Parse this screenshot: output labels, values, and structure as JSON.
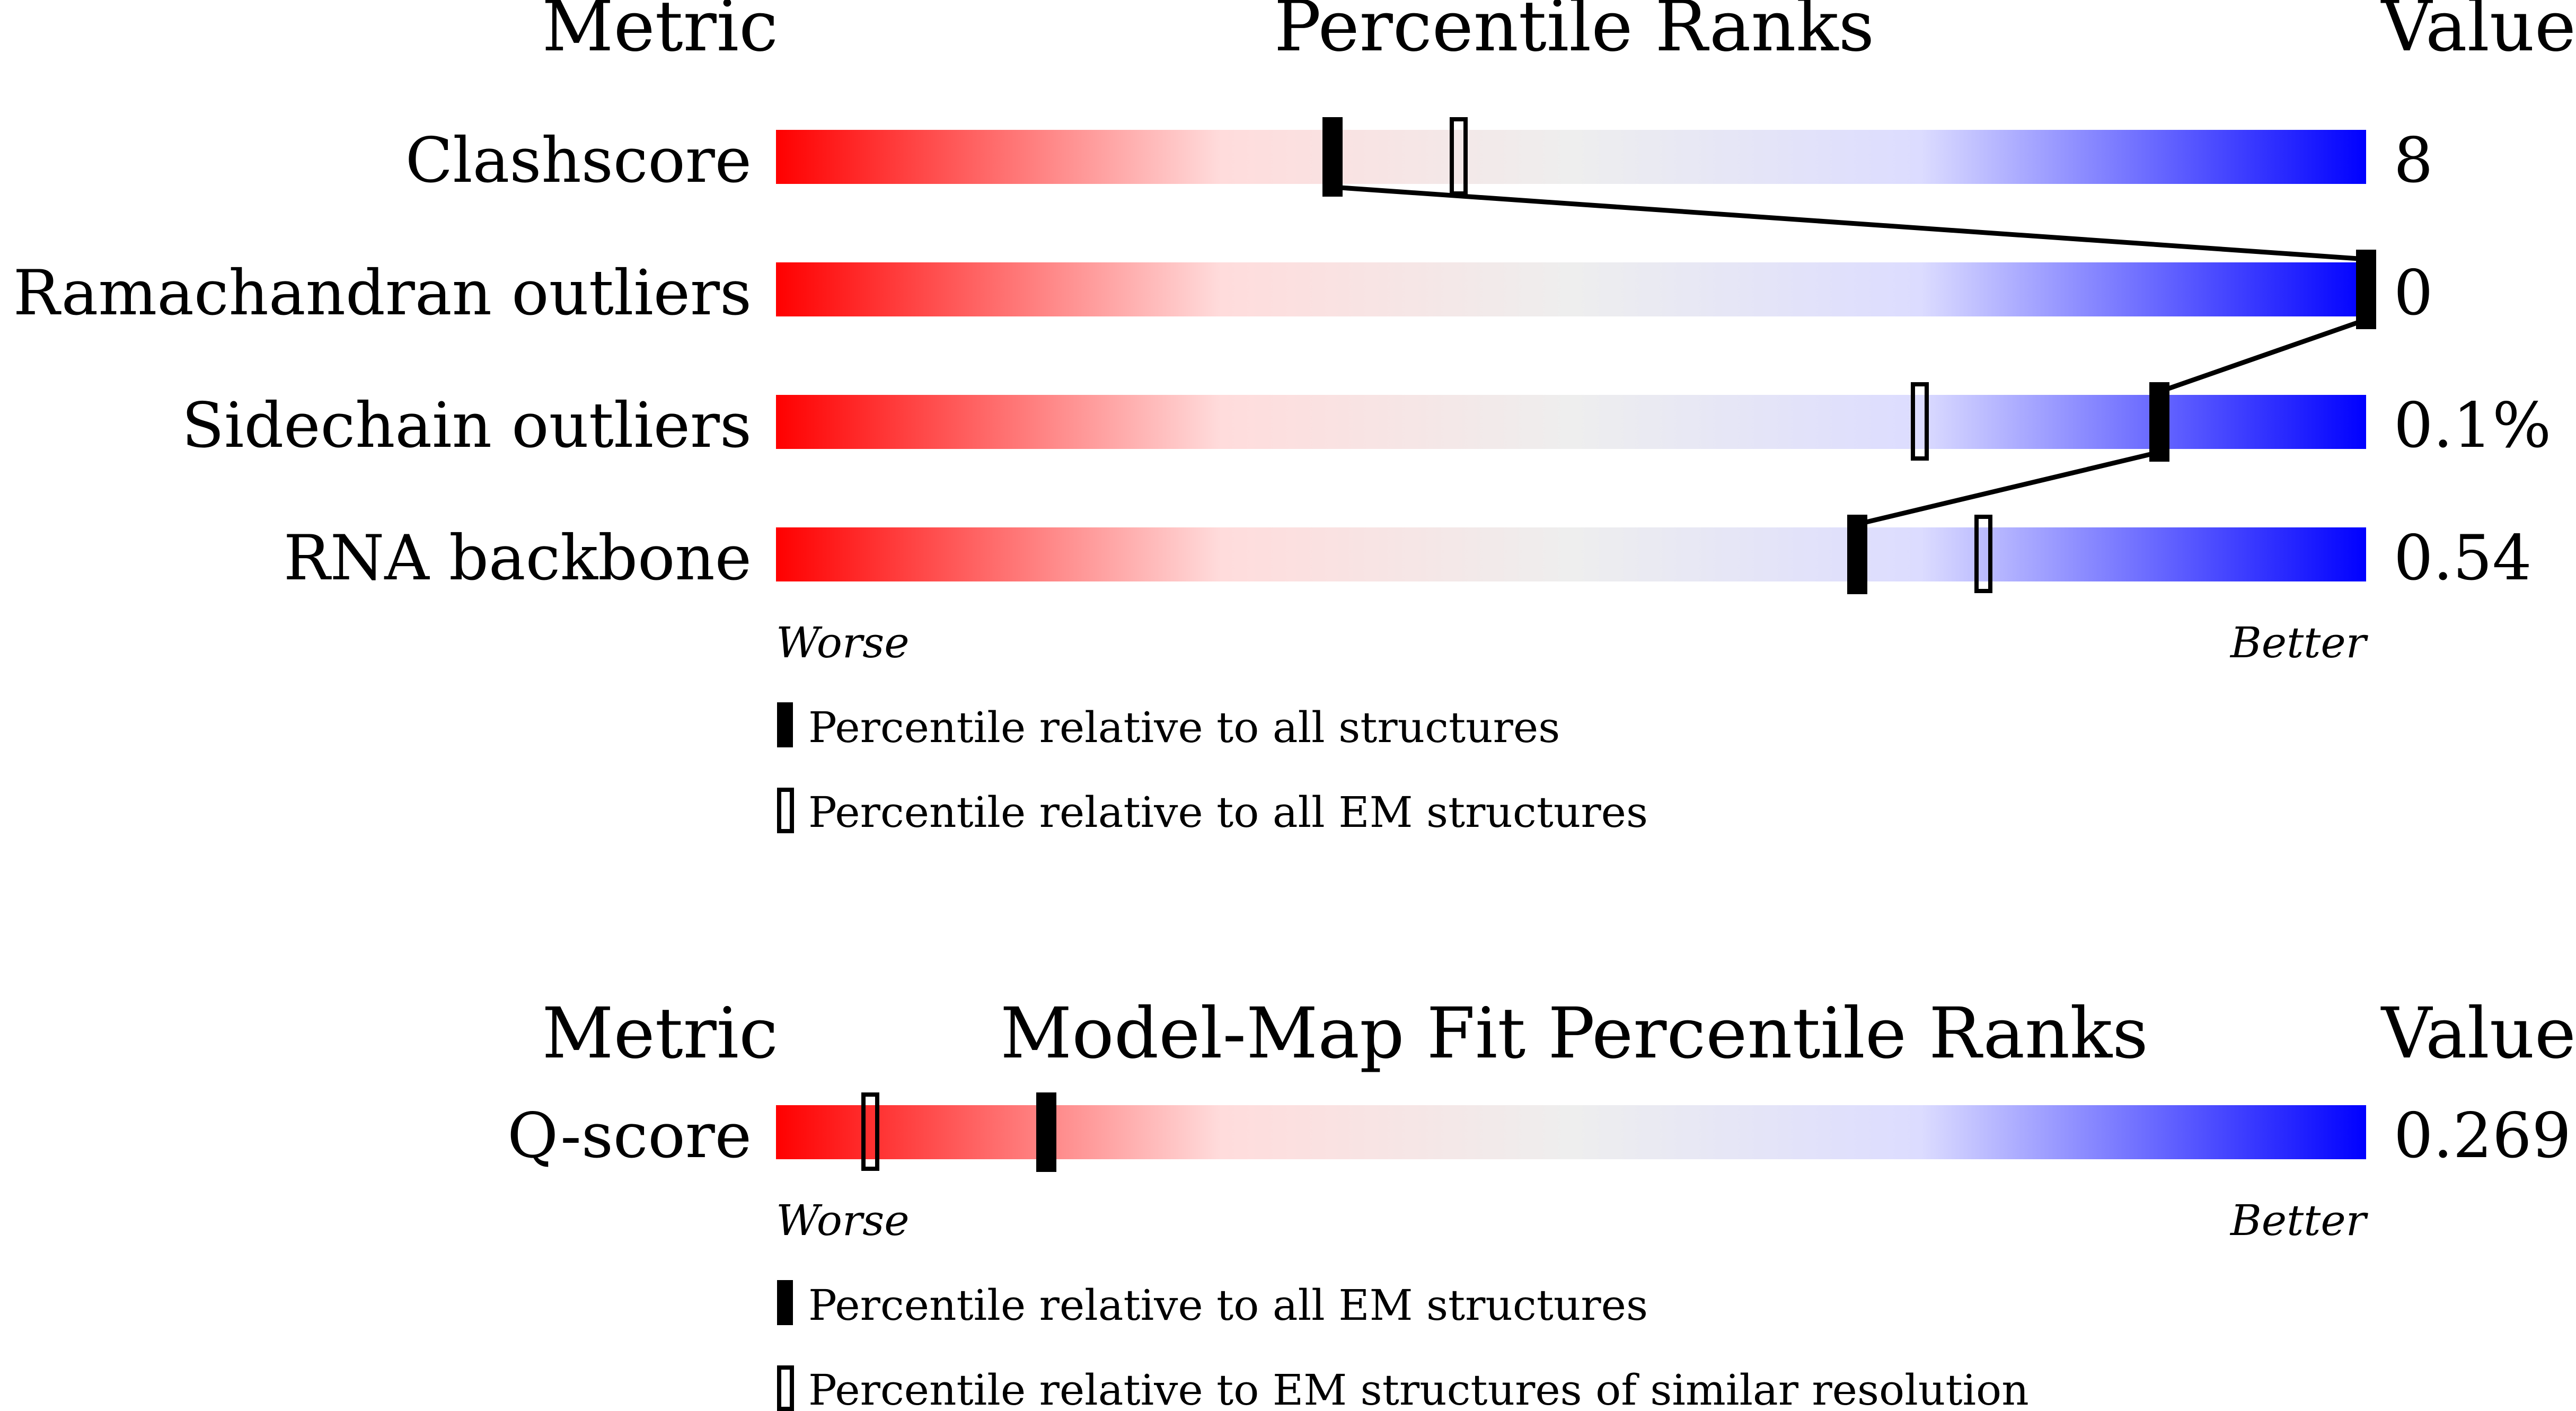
{
  "colors": {
    "worse": "#ff0000",
    "neutral": "#eeeeee",
    "better": "#0000ff",
    "pink_mid": "#ffdcdc",
    "lavender_mid": "#dcdcff",
    "marker": "#000000"
  },
  "chart_data": [
    {
      "type": "percentile-bars",
      "headers": {
        "metric": "Metric",
        "title": "Percentile Ranks",
        "value": "Value"
      },
      "axis": {
        "worse": "Worse",
        "better": "Better",
        "range": [
          0,
          100
        ]
      },
      "rows": [
        {
          "metric": "Clashscore",
          "value": "8",
          "all_percentile": 35,
          "em_percentile": 43
        },
        {
          "metric": "Ramachandran outliers",
          "value": "0",
          "all_percentile": 100,
          "em_percentile": null
        },
        {
          "metric": "Sidechain outliers",
          "value": "0.1%",
          "all_percentile": 87,
          "em_percentile": 72
        },
        {
          "metric": "RNA backbone",
          "value": "0.54",
          "all_percentile": 68,
          "em_percentile": 76
        }
      ],
      "legend": [
        {
          "marker": "filled",
          "label": "Percentile relative to all structures"
        },
        {
          "marker": "open",
          "label": "Percentile relative to all EM structures"
        }
      ]
    },
    {
      "type": "percentile-bars",
      "headers": {
        "metric": "Metric",
        "title": "Model-Map Fit Percentile Ranks",
        "value": "Value"
      },
      "axis": {
        "worse": "Worse",
        "better": "Better",
        "range": [
          0,
          100
        ]
      },
      "rows": [
        {
          "metric": "Q-score",
          "value": "0.269",
          "all_percentile": 17,
          "em_percentile": 6
        }
      ],
      "legend": [
        {
          "marker": "filled",
          "label": "Percentile relative to all EM structures"
        },
        {
          "marker": "open",
          "label": "Percentile relative to EM structures of similar resolution"
        }
      ]
    }
  ]
}
